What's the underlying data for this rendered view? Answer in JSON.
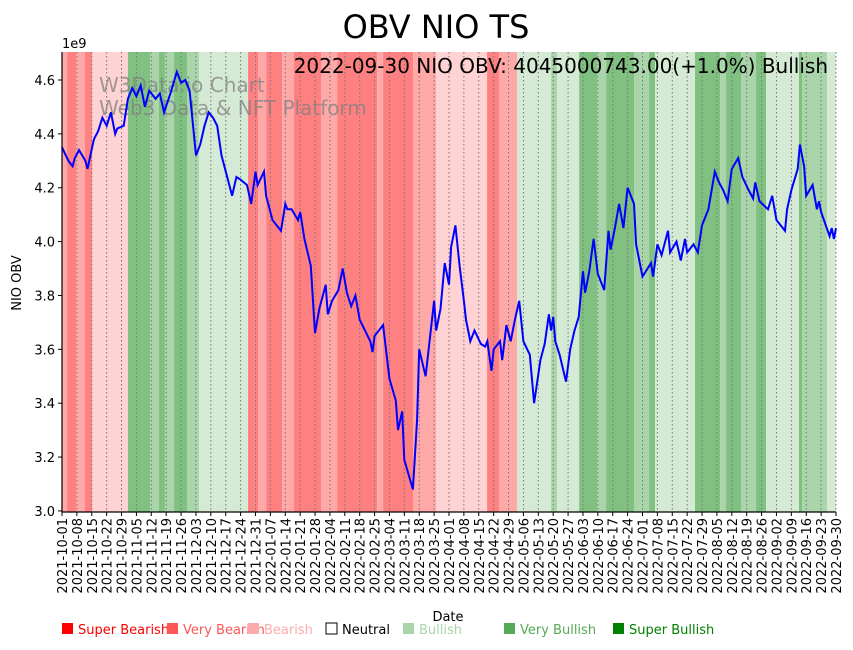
{
  "chart_data": {
    "type": "line",
    "title": "OBV NIO TS",
    "annotation": "2022-09-30 NIO OBV: 4045000743.00(+1.0%) Bullish",
    "watermark": [
      "W3Data.io Chart",
      "Web3 Data & NFT Platform"
    ],
    "xlabel": "Date",
    "ylabel": "NIO OBV",
    "y_multiplier_label": "1e9",
    "x_start_date": "2021-10-01",
    "x_unit": "days since 2021-10-01",
    "xlim": [
      0,
      364
    ],
    "ylim": [
      2.996,
      4.704
    ],
    "y_ticks": [
      3.0,
      3.2,
      3.4,
      3.6,
      3.8,
      4.0,
      4.2,
      4.4,
      4.6
    ],
    "y_tick_labels": [
      "3.0",
      "3.2",
      "3.4",
      "3.6",
      "3.8",
      "4.0",
      "4.2",
      "4.4",
      "4.6"
    ],
    "x_tick_labels": [
      "2021-10-01",
      "2021-10-08",
      "2021-10-15",
      "2021-10-22",
      "2021-10-29",
      "2021-11-05",
      "2021-11-12",
      "2021-11-19",
      "2021-11-26",
      "2021-12-03",
      "2021-12-10",
      "2021-12-17",
      "2021-12-24",
      "2021-12-31",
      "2022-01-07",
      "2022-01-14",
      "2022-01-21",
      "2022-01-28",
      "2022-02-04",
      "2022-02-11",
      "2022-02-18",
      "2022-02-25",
      "2022-03-04",
      "2022-03-11",
      "2022-03-18",
      "2022-03-25",
      "2022-04-01",
      "2022-04-08",
      "2022-04-15",
      "2022-04-22",
      "2022-04-29",
      "2022-05-06",
      "2022-05-13",
      "2022-05-20",
      "2022-05-27",
      "2022-06-03",
      "2022-06-10",
      "2022-06-17",
      "2022-06-24",
      "2022-07-01",
      "2022-07-08",
      "2022-07-15",
      "2022-07-22",
      "2022-07-29",
      "2022-08-05",
      "2022-08-12",
      "2022-08-19",
      "2022-08-26",
      "2022-09-02",
      "2022-09-09",
      "2022-09-16",
      "2022-09-23",
      "2022-09-30"
    ],
    "x_tick_step_days": 7,
    "grid": "vertical dotted",
    "series": [
      {
        "name": "NIO OBV",
        "color": "#0000ff",
        "points": [
          [
            0,
            4.35
          ],
          [
            3,
            4.3
          ],
          [
            5,
            4.28
          ],
          [
            6,
            4.31
          ],
          [
            8,
            4.34
          ],
          [
            11,
            4.3
          ],
          [
            12,
            4.27
          ],
          [
            15,
            4.38
          ],
          [
            17,
            4.41
          ],
          [
            19,
            4.46
          ],
          [
            21,
            4.43
          ],
          [
            23,
            4.48
          ],
          [
            25,
            4.4
          ],
          [
            26,
            4.42
          ],
          [
            29,
            4.43
          ],
          [
            31,
            4.53
          ],
          [
            33,
            4.57
          ],
          [
            35,
            4.54
          ],
          [
            37,
            4.58
          ],
          [
            39,
            4.5
          ],
          [
            41,
            4.56
          ],
          [
            44,
            4.53
          ],
          [
            46,
            4.55
          ],
          [
            48,
            4.48
          ],
          [
            51,
            4.55
          ],
          [
            54,
            4.63
          ],
          [
            56,
            4.59
          ],
          [
            58,
            4.6
          ],
          [
            60,
            4.56
          ],
          [
            63,
            4.32
          ],
          [
            65,
            4.36
          ],
          [
            67,
            4.43
          ],
          [
            69,
            4.48
          ],
          [
            71,
            4.46
          ],
          [
            73,
            4.43
          ],
          [
            75,
            4.32
          ],
          [
            78,
            4.23
          ],
          [
            80,
            4.17
          ],
          [
            82,
            4.24
          ],
          [
            84,
            4.23
          ],
          [
            87,
            4.21
          ],
          [
            89,
            4.14
          ],
          [
            91,
            4.26
          ],
          [
            92,
            4.21
          ],
          [
            95,
            4.26
          ],
          [
            96,
            4.17
          ],
          [
            99,
            4.08
          ],
          [
            103,
            4.04
          ],
          [
            105,
            4.14
          ],
          [
            106,
            4.12
          ],
          [
            108,
            4.12
          ],
          [
            111,
            4.08
          ],
          [
            112,
            4.11
          ],
          [
            114,
            4.01
          ],
          [
            117,
            3.91
          ],
          [
            119,
            3.66
          ],
          [
            121,
            3.75
          ],
          [
            124,
            3.84
          ],
          [
            125,
            3.73
          ],
          [
            127,
            3.78
          ],
          [
            130,
            3.82
          ],
          [
            132,
            3.9
          ],
          [
            134,
            3.81
          ],
          [
            136,
            3.76
          ],
          [
            138,
            3.8
          ],
          [
            140,
            3.71
          ],
          [
            145,
            3.63
          ],
          [
            146,
            3.59
          ],
          [
            147,
            3.65
          ],
          [
            151,
            3.69
          ],
          [
            154,
            3.49
          ],
          [
            157,
            3.41
          ],
          [
            158,
            3.3
          ],
          [
            160,
            3.37
          ],
          [
            161,
            3.19
          ],
          [
            165,
            3.08
          ],
          [
            167,
            3.34
          ],
          [
            168,
            3.6
          ],
          [
            171,
            3.5
          ],
          [
            175,
            3.78
          ],
          [
            176,
            3.67
          ],
          [
            178,
            3.75
          ],
          [
            180,
            3.92
          ],
          [
            182,
            3.84
          ],
          [
            183,
            3.98
          ],
          [
            185,
            4.06
          ],
          [
            187,
            3.91
          ],
          [
            189,
            3.78
          ],
          [
            190,
            3.71
          ],
          [
            192,
            3.63
          ],
          [
            194,
            3.67
          ],
          [
            197,
            3.62
          ],
          [
            199,
            3.61
          ],
          [
            200,
            3.63
          ],
          [
            202,
            3.52
          ],
          [
            203,
            3.6
          ],
          [
            206,
            3.63
          ],
          [
            207,
            3.56
          ],
          [
            209,
            3.69
          ],
          [
            211,
            3.63
          ],
          [
            213,
            3.71
          ],
          [
            215,
            3.78
          ],
          [
            217,
            3.63
          ],
          [
            220,
            3.58
          ],
          [
            222,
            3.4
          ],
          [
            225,
            3.56
          ],
          [
            227,
            3.62
          ],
          [
            229,
            3.73
          ],
          [
            230,
            3.67
          ],
          [
            231,
            3.72
          ],
          [
            232,
            3.63
          ],
          [
            234,
            3.58
          ],
          [
            237,
            3.48
          ],
          [
            239,
            3.6
          ],
          [
            241,
            3.67
          ],
          [
            243,
            3.72
          ],
          [
            245,
            3.89
          ],
          [
            246,
            3.81
          ],
          [
            248,
            3.89
          ],
          [
            250,
            4.01
          ],
          [
            252,
            3.88
          ],
          [
            255,
            3.82
          ],
          [
            257,
            4.04
          ],
          [
            258,
            3.97
          ],
          [
            260,
            4.05
          ],
          [
            262,
            4.14
          ],
          [
            264,
            4.05
          ],
          [
            266,
            4.2
          ],
          [
            269,
            4.14
          ],
          [
            270,
            3.99
          ],
          [
            273,
            3.87
          ],
          [
            277,
            3.92
          ],
          [
            278,
            3.87
          ],
          [
            280,
            3.99
          ],
          [
            282,
            3.95
          ],
          [
            285,
            4.04
          ],
          [
            286,
            3.96
          ],
          [
            289,
            4.0
          ],
          [
            291,
            3.93
          ],
          [
            293,
            4.01
          ],
          [
            294,
            3.96
          ],
          [
            297,
            3.99
          ],
          [
            299,
            3.96
          ],
          [
            301,
            4.06
          ],
          [
            304,
            4.12
          ],
          [
            307,
            4.26
          ],
          [
            309,
            4.22
          ],
          [
            311,
            4.19
          ],
          [
            313,
            4.15
          ],
          [
            315,
            4.27
          ],
          [
            318,
            4.31
          ],
          [
            320,
            4.24
          ],
          [
            323,
            4.19
          ],
          [
            325,
            4.16
          ],
          [
            326,
            4.22
          ],
          [
            328,
            4.15
          ],
          [
            332,
            4.12
          ],
          [
            334,
            4.17
          ],
          [
            336,
            4.08
          ],
          [
            340,
            4.04
          ],
          [
            341,
            4.12
          ],
          [
            343,
            4.19
          ],
          [
            346,
            4.27
          ],
          [
            347,
            4.36
          ],
          [
            349,
            4.28
          ],
          [
            350,
            4.17
          ],
          [
            353,
            4.21
          ],
          [
            355,
            4.12
          ],
          [
            356,
            4.15
          ],
          [
            357,
            4.11
          ],
          [
            361,
            4.02
          ],
          [
            362,
            4.05
          ],
          [
            363,
            4.01
          ],
          [
            364,
            4.05
          ]
        ]
      }
    ],
    "sentiment_bands": [
      [
        0,
        2.4,
        "Very Bearish"
      ],
      [
        2.4,
        6.6,
        "Super Bearish"
      ],
      [
        6.6,
        10.8,
        "Very Bearish"
      ],
      [
        10.8,
        14.1,
        "Super Bearish"
      ],
      [
        14.1,
        31,
        "Bearish"
      ],
      [
        31,
        41.4,
        "Super Bullish"
      ],
      [
        41.4,
        45.6,
        "Very Bullish"
      ],
      [
        45.6,
        48.4,
        "Super Bullish"
      ],
      [
        48.4,
        52.7,
        "Very Bullish"
      ],
      [
        52.7,
        58.8,
        "Super Bullish"
      ],
      [
        58.8,
        64.4,
        "Very Bullish"
      ],
      [
        64.4,
        87.5,
        "Bullish"
      ],
      [
        87.5,
        92.2,
        "Super Bearish"
      ],
      [
        92.2,
        96,
        "Very Bearish"
      ],
      [
        96,
        103.5,
        "Super Bearish"
      ],
      [
        103.5,
        109.1,
        "Very Bearish"
      ],
      [
        109.1,
        121.8,
        "Super Bearish"
      ],
      [
        121.8,
        129.4,
        "Very Bearish"
      ],
      [
        129.4,
        148.2,
        "Super Bearish"
      ],
      [
        148.2,
        151,
        "Very Bearish"
      ],
      [
        151,
        165.1,
        "Super Bearish"
      ],
      [
        165.1,
        175.9,
        "Very Bearish"
      ],
      [
        175.9,
        199.9,
        "Bearish"
      ],
      [
        199.9,
        205.5,
        "Super Bearish"
      ],
      [
        205.5,
        214,
        "Very Bearish"
      ],
      [
        214,
        230,
        "Bullish"
      ],
      [
        230,
        232.8,
        "Very Bullish"
      ],
      [
        232.8,
        243.2,
        "Bullish"
      ],
      [
        243.2,
        251.6,
        "Super Bullish"
      ],
      [
        251.6,
        255.9,
        "Very Bullish"
      ],
      [
        255.9,
        269,
        "Super Bullish"
      ],
      [
        269,
        276.1,
        "Very Bullish"
      ],
      [
        276.1,
        278.9,
        "Super Bullish"
      ],
      [
        278.9,
        297.7,
        "Bullish"
      ],
      [
        297.7,
        309.5,
        "Super Bullish"
      ],
      [
        309.5,
        312.3,
        "Very Bullish"
      ],
      [
        312.3,
        319.4,
        "Super Bullish"
      ],
      [
        319.4,
        326.4,
        "Very Bullish"
      ],
      [
        326.4,
        331.1,
        "Super Bullish"
      ],
      [
        331.1,
        346.6,
        "Bullish"
      ],
      [
        346.6,
        348.1,
        "Super Bullish"
      ],
      [
        348.1,
        359.8,
        "Very Bullish"
      ],
      [
        359.8,
        364,
        "Bullish"
      ]
    ],
    "band_colors": {
      "Super Bearish": "#ff8080",
      "Very Bearish": "#ffa8a8",
      "Bearish": "#ffd3d3",
      "Bullish": "#d5ead5",
      "Very Bullish": "#aad5aa",
      "Super Bullish": "#80c080"
    },
    "legend": {
      "placement": "bottom",
      "entries": [
        {
          "label": "Super Bearish",
          "color": "#ff0000"
        },
        {
          "label": "Very Bearish",
          "color": "#ff5555"
        },
        {
          "label": "Bearish",
          "color": "#ffaaaa"
        },
        {
          "label": "Neutral",
          "color": "#ffffff",
          "text_color": "#000000"
        },
        {
          "label": "Bullish",
          "color": "#aad4aa"
        },
        {
          "label": "Very Bullish",
          "color": "#55aa55"
        },
        {
          "label": "Super Bullish",
          "color": "#008000"
        }
      ]
    }
  }
}
